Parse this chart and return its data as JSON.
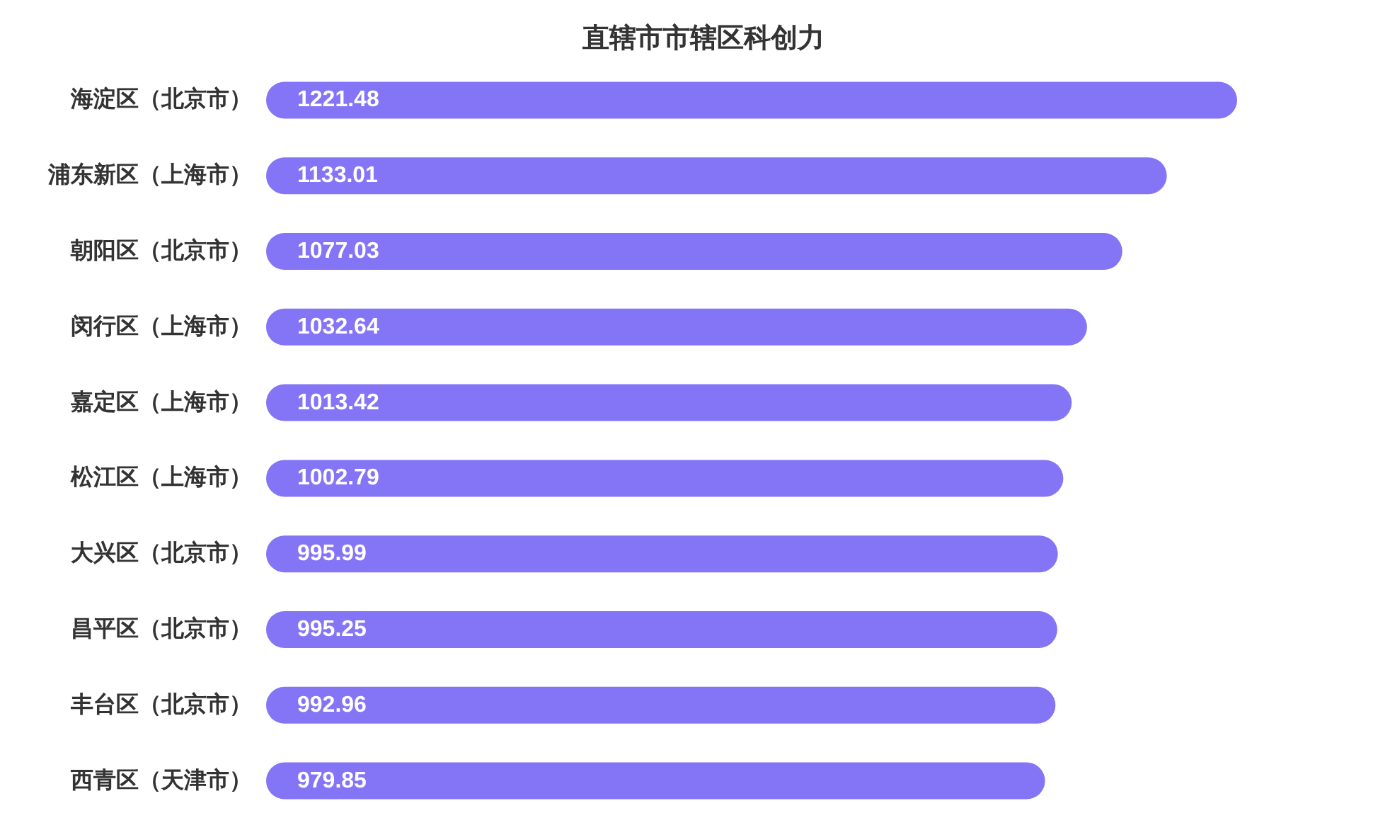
{
  "chart_data": {
    "type": "bar",
    "orientation": "horizontal",
    "title": "直辖市市辖区科创力",
    "categories": [
      "海淀区（北京市）",
      "浦东新区（上海市）",
      "朝阳区（北京市）",
      "闵行区（上海市）",
      "嘉定区（上海市）",
      "松江区（上海市）",
      "大兴区（北京市）",
      "昌平区（北京市）",
      "丰台区（北京市）",
      "西青区（天津市）"
    ],
    "values": [
      1221.48,
      1133.01,
      1077.03,
      1032.64,
      1013.42,
      1002.79,
      995.99,
      995.25,
      992.96,
      979.85
    ],
    "color": "#8475f7",
    "data_labels": true
  }
}
